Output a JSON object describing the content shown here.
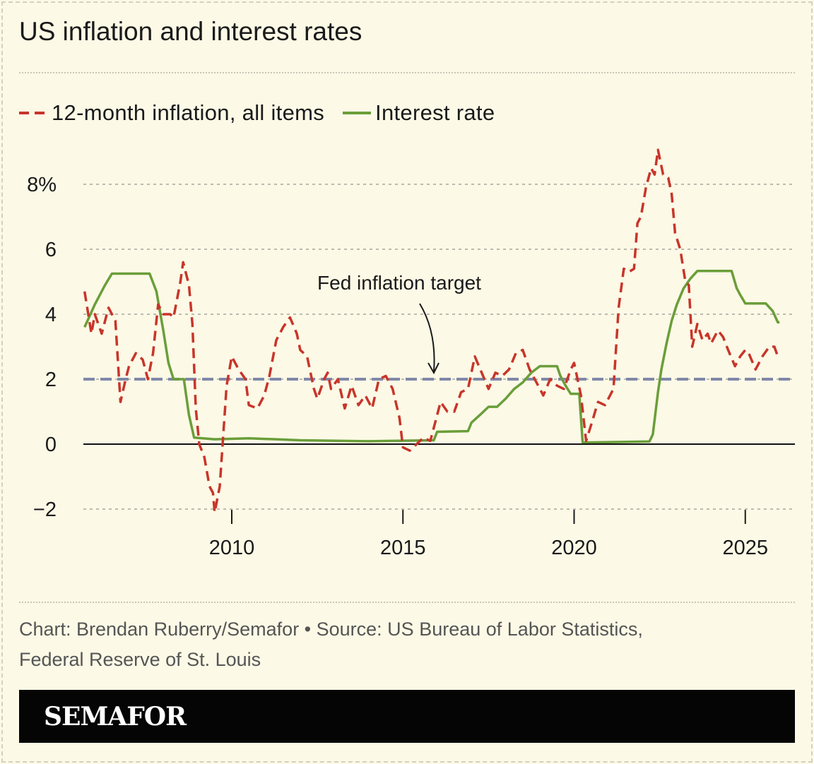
{
  "title": "US inflation and interest rates",
  "footer": {
    "line1": "Chart: Brendan Ruberry/Semafor • Source: US Bureau of Labor Statistics,",
    "line2": "Federal Reserve of St. Louis"
  },
  "logo": "SEMAFOR",
  "chart_data": {
    "type": "line",
    "title": "US inflation and interest rates",
    "xlim": [
      2005.67,
      2026.45
    ],
    "ylim": [
      -2.2,
      9.2
    ],
    "x_ticks": [
      2010,
      2015,
      2020,
      2025
    ],
    "x_tick_labels": [
      "2010",
      "2015",
      "2020",
      "2025"
    ],
    "y_ticks": [
      -2,
      0,
      2,
      4,
      6,
      8
    ],
    "y_tick_labels": [
      "−2",
      "0",
      "2",
      "4",
      "6",
      "8%"
    ],
    "grid": true,
    "legend_position": "top-left",
    "colors": {
      "inflation": "#c8352a",
      "interest": "#6a9e3a",
      "target": "#8088a8"
    },
    "annotation": {
      "text": "Fed inflation target",
      "value": 2
    },
    "series": [
      {
        "name": "12-month inflation, all items",
        "style": "dashed",
        "x": [
          2005.7,
          2005.9,
          2006.0,
          2006.2,
          2006.4,
          2006.6,
          2006.75,
          2006.9,
          2007.0,
          2007.2,
          2007.4,
          2007.55,
          2007.7,
          2007.85,
          2008.0,
          2008.2,
          2008.3,
          2008.5,
          2008.58,
          2008.75,
          2008.85,
          2008.95,
          2009.05,
          2009.2,
          2009.35,
          2009.45,
          2009.5,
          2009.65,
          2009.85,
          2010.0,
          2010.2,
          2010.4,
          2010.5,
          2010.75,
          2010.95,
          2011.1,
          2011.3,
          2011.5,
          2011.7,
          2011.9,
          2012.0,
          2012.2,
          2012.4,
          2012.5,
          2012.7,
          2012.8,
          2012.9,
          2013.1,
          2013.3,
          2013.5,
          2013.7,
          2013.9,
          2014.1,
          2014.3,
          2014.5,
          2014.7,
          2014.9,
          2015.0,
          2015.2,
          2015.4,
          2015.6,
          2015.8,
          2015.95,
          2016.1,
          2016.3,
          2016.5,
          2016.7,
          2016.9,
          2017.1,
          2017.3,
          2017.5,
          2017.7,
          2017.9,
          2018.1,
          2018.3,
          2018.5,
          2018.7,
          2018.9,
          2019.1,
          2019.3,
          2019.5,
          2019.7,
          2019.9,
          2020.0,
          2020.2,
          2020.35,
          2020.5,
          2020.7,
          2020.9,
          2021.0,
          2021.15,
          2021.3,
          2021.45,
          2021.6,
          2021.75,
          2021.85,
          2021.95,
          2022.1,
          2022.25,
          2022.35,
          2022.45,
          2022.6,
          2022.75,
          2022.85,
          2022.95,
          2023.1,
          2023.25,
          2023.35,
          2023.45,
          2023.6,
          2023.75,
          2023.9,
          2024.0,
          2024.2,
          2024.35,
          2024.5,
          2024.7,
          2024.85,
          2025.0,
          2025.1,
          2025.3,
          2025.5,
          2025.7,
          2025.85,
          2025.95
        ],
        "values": [
          4.7,
          3.4,
          4.0,
          3.4,
          4.2,
          3.8,
          1.3,
          2.0,
          2.4,
          2.8,
          2.6,
          2.0,
          2.8,
          4.3,
          4.0,
          4.0,
          3.9,
          5.0,
          5.6,
          4.9,
          3.7,
          1.1,
          0.0,
          -0.4,
          -1.3,
          -1.5,
          -2.1,
          -1.3,
          1.8,
          2.7,
          2.3,
          2.0,
          1.2,
          1.1,
          1.5,
          2.1,
          3.2,
          3.6,
          3.9,
          3.4,
          2.9,
          2.7,
          1.7,
          1.4,
          2.0,
          2.2,
          1.7,
          2.0,
          1.1,
          1.8,
          1.2,
          1.5,
          1.1,
          2.0,
          2.1,
          1.7,
          0.8,
          -0.1,
          -0.2,
          0.0,
          0.2,
          0.1,
          0.7,
          1.3,
          1.0,
          1.0,
          1.6,
          1.7,
          2.7,
          2.2,
          1.7,
          2.2,
          2.1,
          2.3,
          2.8,
          2.9,
          2.3,
          1.9,
          1.5,
          2.0,
          1.8,
          1.7,
          2.3,
          2.5,
          1.5,
          0.1,
          0.6,
          1.3,
          1.2,
          1.4,
          1.7,
          4.2,
          5.4,
          5.3,
          5.4,
          6.8,
          7.0,
          7.9,
          8.5,
          8.3,
          9.06,
          8.3,
          8.2,
          7.7,
          6.5,
          6.0,
          5.0,
          4.9,
          3.0,
          3.7,
          3.2,
          3.4,
          3.1,
          3.5,
          3.3,
          2.9,
          2.4,
          2.7,
          2.9,
          2.8,
          2.3,
          2.7,
          3.0,
          3.0,
          2.7
        ]
      },
      {
        "name": "Interest rate",
        "style": "solid",
        "x": [
          2005.7,
          2006.0,
          2006.3,
          2006.5,
          2007.6,
          2007.8,
          2008.0,
          2008.15,
          2008.3,
          2008.6,
          2008.75,
          2008.9,
          2009.5,
          2010.5,
          2012.0,
          2014.0,
          2015.9,
          2016.0,
          2016.9,
          2017.0,
          2017.25,
          2017.5,
          2017.75,
          2018.0,
          2018.25,
          2018.5,
          2018.75,
          2019.0,
          2019.5,
          2019.6,
          2019.75,
          2019.9,
          2020.15,
          2020.25,
          2022.2,
          2022.3,
          2022.45,
          2022.55,
          2022.7,
          2022.85,
          2023.0,
          2023.2,
          2023.4,
          2023.6,
          2024.6,
          2024.75,
          2024.85,
          2025.0,
          2025.6,
          2025.8,
          2025.95,
          2026.0
        ],
        "values": [
          3.6,
          4.3,
          4.9,
          5.25,
          5.25,
          4.7,
          3.5,
          2.5,
          2.0,
          2.0,
          0.9,
          0.2,
          0.15,
          0.18,
          0.12,
          0.09,
          0.12,
          0.38,
          0.4,
          0.66,
          0.9,
          1.15,
          1.15,
          1.4,
          1.7,
          1.9,
          2.2,
          2.4,
          2.4,
          2.1,
          1.8,
          1.55,
          1.55,
          0.05,
          0.08,
          0.3,
          1.6,
          2.3,
          3.1,
          3.8,
          4.3,
          4.8,
          5.1,
          5.33,
          5.33,
          4.8,
          4.6,
          4.33,
          4.33,
          4.1,
          3.75,
          3.75
        ]
      }
    ]
  }
}
